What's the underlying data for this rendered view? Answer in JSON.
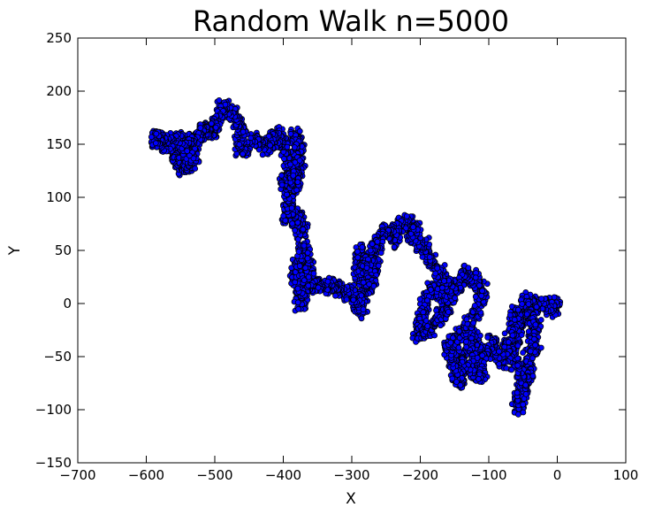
{
  "chart_data": {
    "type": "scatter",
    "title": "Random Walk n=5000",
    "xlabel": "X",
    "ylabel": "Y",
    "xlim": [
      -700,
      100
    ],
    "ylim": [
      -150,
      250
    ],
    "xticks": [
      -700,
      -600,
      -500,
      -400,
      -300,
      -200,
      -100,
      0,
      100
    ],
    "yticks": [
      -150,
      -100,
      -50,
      0,
      50,
      100,
      150,
      200,
      250
    ],
    "xtick_labels": [
      "−700",
      "−600",
      "−500",
      "−400",
      "−300",
      "−200",
      "−100",
      "0",
      "100"
    ],
    "ytick_labels": [
      "−150",
      "−100",
      "−50",
      "0",
      "50",
      "100",
      "150",
      "200",
      "250"
    ],
    "grid": false,
    "marker_color": "#0000ff",
    "marker_edge_color": "#000000",
    "n_points": 5000,
    "path_points": [
      [
        0,
        0
      ],
      [
        -5,
        -6
      ],
      [
        -12,
        -2
      ],
      [
        -25,
        0
      ],
      [
        -35,
        -2
      ],
      [
        -45,
        5
      ],
      [
        -50,
        -5
      ],
      [
        -40,
        -10
      ],
      [
        -30,
        -20
      ],
      [
        -35,
        -30
      ],
      [
        -40,
        -45
      ],
      [
        -30,
        -40
      ],
      [
        -45,
        -55
      ],
      [
        -40,
        -65
      ],
      [
        -45,
        -75
      ],
      [
        -50,
        -80
      ],
      [
        -55,
        -95
      ],
      [
        -58,
        -98
      ],
      [
        -55,
        -85
      ],
      [
        -50,
        -70
      ],
      [
        -60,
        -60
      ],
      [
        -65,
        -45
      ],
      [
        -60,
        -35
      ],
      [
        -55,
        -25
      ],
      [
        -60,
        -15
      ],
      [
        -62,
        -8
      ],
      [
        -65,
        -25
      ],
      [
        -70,
        -35
      ],
      [
        -75,
        -40
      ],
      [
        -70,
        -48
      ],
      [
        -80,
        -55
      ],
      [
        -90,
        -45
      ],
      [
        -95,
        -35
      ],
      [
        -100,
        -45
      ],
      [
        -110,
        -50
      ],
      [
        -120,
        -45
      ],
      [
        -115,
        -35
      ],
      [
        -125,
        -30
      ],
      [
        -130,
        -40
      ],
      [
        -120,
        -55
      ],
      [
        -110,
        -65
      ],
      [
        -115,
        -70
      ],
      [
        -130,
        -60
      ],
      [
        -140,
        -50
      ],
      [
        -145,
        -60
      ],
      [
        -140,
        -70
      ],
      [
        -145,
        -76
      ],
      [
        -150,
        -65
      ],
      [
        -155,
        -50
      ],
      [
        -160,
        -40
      ],
      [
        -150,
        -35
      ],
      [
        -140,
        -30
      ],
      [
        -130,
        -20
      ],
      [
        -120,
        -10
      ],
      [
        -115,
        0
      ],
      [
        -110,
        10
      ],
      [
        -115,
        20
      ],
      [
        -125,
        25
      ],
      [
        -135,
        30
      ],
      [
        -140,
        20
      ],
      [
        -150,
        10
      ],
      [
        -160,
        5
      ],
      [
        -170,
        10
      ],
      [
        -180,
        15
      ],
      [
        -190,
        5
      ],
      [
        -195,
        -5
      ],
      [
        -200,
        -15
      ],
      [
        -205,
        -25
      ],
      [
        -200,
        -30
      ],
      [
        -190,
        -25
      ],
      [
        -180,
        -20
      ],
      [
        -170,
        -10
      ],
      [
        -160,
        -5
      ],
      [
        -155,
        15
      ],
      [
        -165,
        25
      ],
      [
        -175,
        30
      ],
      [
        -185,
        40
      ],
      [
        -190,
        45
      ],
      [
        -195,
        55
      ],
      [
        -205,
        60
      ],
      [
        -215,
        65
      ],
      [
        -205,
        70
      ],
      [
        -215,
        75
      ],
      [
        -225,
        75
      ],
      [
        -235,
        72
      ],
      [
        -240,
        65
      ],
      [
        -235,
        60
      ],
      [
        -250,
        70
      ],
      [
        -255,
        65
      ],
      [
        -262,
        55
      ],
      [
        -270,
        50
      ],
      [
        -265,
        40
      ],
      [
        -270,
        25
      ],
      [
        -280,
        20
      ],
      [
        -290,
        25
      ],
      [
        -290,
        40
      ],
      [
        -285,
        50
      ],
      [
        -280,
        35
      ],
      [
        -275,
        30
      ],
      [
        -270,
        20
      ],
      [
        -275,
        15
      ],
      [
        -285,
        5
      ],
      [
        -290,
        0
      ],
      [
        -295,
        -2
      ],
      [
        -285,
        -8
      ],
      [
        -290,
        5
      ],
      [
        -300,
        10
      ],
      [
        -310,
        12
      ],
      [
        -320,
        15
      ],
      [
        -330,
        18
      ],
      [
        -340,
        16
      ],
      [
        -350,
        15
      ],
      [
        -360,
        20
      ],
      [
        -370,
        15
      ],
      [
        -375,
        10
      ],
      [
        -372,
        5
      ],
      [
        -375,
        0
      ],
      [
        -380,
        20
      ],
      [
        -385,
        30
      ],
      [
        -375,
        40
      ],
      [
        -370,
        50
      ],
      [
        -365,
        40
      ],
      [
        -360,
        30
      ],
      [
        -365,
        20
      ],
      [
        -375,
        60
      ],
      [
        -370,
        70
      ],
      [
        -375,
        80
      ],
      [
        -380,
        75
      ],
      [
        -385,
        85
      ],
      [
        -390,
        90
      ],
      [
        -395,
        80
      ],
      [
        -390,
        100
      ],
      [
        -395,
        110
      ],
      [
        -400,
        115
      ],
      [
        -390,
        120
      ],
      [
        -385,
        130
      ],
      [
        -380,
        140
      ],
      [
        -375,
        150
      ],
      [
        -380,
        155
      ],
      [
        -385,
        160
      ],
      [
        -380,
        140
      ],
      [
        -375,
        130
      ],
      [
        -380,
        115
      ],
      [
        -385,
        110
      ],
      [
        -390,
        130
      ],
      [
        -395,
        140
      ],
      [
        -400,
        150
      ],
      [
        -405,
        155
      ],
      [
        -410,
        160
      ],
      [
        -415,
        155
      ],
      [
        -420,
        150
      ],
      [
        -425,
        145
      ],
      [
        -430,
        150
      ],
      [
        -440,
        155
      ],
      [
        -450,
        150
      ],
      [
        -460,
        145
      ],
      [
        -465,
        150
      ],
      [
        -460,
        160
      ],
      [
        -465,
        170
      ],
      [
        -470,
        175
      ],
      [
        -475,
        180
      ],
      [
        -485,
        185
      ],
      [
        -490,
        185
      ],
      [
        -495,
        175
      ],
      [
        -500,
        168
      ],
      [
        -505,
        160
      ],
      [
        -510,
        165
      ],
      [
        -515,
        160
      ],
      [
        -520,
        163
      ],
      [
        -525,
        158
      ],
      [
        -530,
        150
      ],
      [
        -540,
        155
      ],
      [
        -545,
        145
      ],
      [
        -550,
        150
      ],
      [
        -555,
        140
      ],
      [
        -560,
        145
      ],
      [
        -555,
        135
      ],
      [
        -550,
        128
      ],
      [
        -545,
        135
      ],
      [
        -540,
        128
      ],
      [
        -535,
        135
      ],
      [
        -530,
        140
      ],
      [
        -540,
        145
      ],
      [
        -550,
        155
      ],
      [
        -560,
        152
      ],
      [
        -570,
        150
      ],
      [
        -575,
        152
      ],
      [
        -580,
        155
      ],
      [
        -585,
        154
      ],
      [
        -590,
        155
      ]
    ]
  }
}
